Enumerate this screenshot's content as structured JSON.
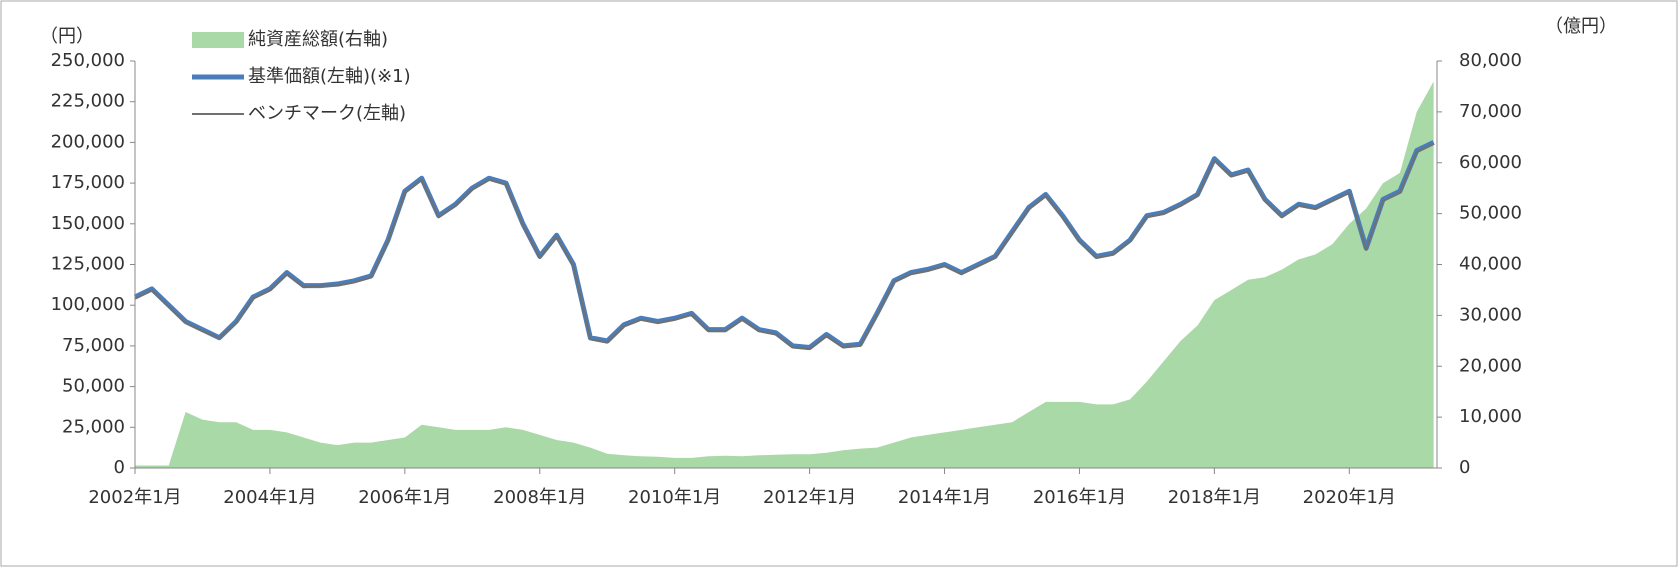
{
  "chart_data": {
    "type": "line",
    "y_unit": "（円）",
    "y2_unit": "（億円）",
    "categories": [
      "2002年1月",
      null,
      null,
      null,
      null,
      null,
      null,
      null,
      "2004年1月",
      null,
      null,
      null,
      null,
      null,
      null,
      null,
      "2006年1月",
      null,
      null,
      null,
      null,
      null,
      null,
      null,
      "2008年1月",
      null,
      null,
      null,
      null,
      null,
      null,
      null,
      "2010年1月",
      null,
      null,
      null,
      null,
      null,
      null,
      null,
      "2012年1月",
      null,
      null,
      null,
      null,
      null,
      null,
      null,
      "2014年1月",
      null,
      null,
      null,
      null,
      null,
      null,
      null,
      "2016年1月",
      null,
      null,
      null,
      null,
      null,
      null,
      null,
      "2018年1月",
      null,
      null,
      null,
      null,
      null,
      null,
      null,
      "2020年1月",
      null,
      null,
      null,
      null,
      null
    ],
    "series": [
      {
        "name": "純資産総額(右軸)",
        "type": "area",
        "axis": "y2",
        "color": "#a9d9a6",
        "values": [
          500,
          500,
          500,
          11000,
          9500,
          9000,
          9000,
          7500,
          7500,
          7000,
          6000,
          5000,
          4500,
          5000,
          5000,
          5500,
          6000,
          8500,
          8000,
          7500,
          7500,
          7500,
          8000,
          7500,
          6500,
          5500,
          5000,
          4000,
          2800,
          2500,
          2300,
          2200,
          2000,
          2000,
          2300,
          2400,
          2300,
          2500,
          2600,
          2700,
          2700,
          3000,
          3500,
          3800,
          4000,
          5000,
          6000,
          6500,
          7000,
          7500,
          8000,
          8500,
          9000,
          11000,
          13000,
          13000,
          13000,
          12500,
          12500,
          13500,
          17000,
          21000,
          25000,
          28000,
          33000,
          35000,
          37000,
          37500,
          39000,
          41000,
          42000,
          44000,
          48000,
          51000,
          56000,
          58000,
          70000,
          76000
        ]
      },
      {
        "name": "基準価額(左軸)(※1)",
        "type": "line",
        "color": "#4a7ebb",
        "values": [
          105000,
          110000,
          100000,
          90000,
          85000,
          80000,
          90000,
          105000,
          110000,
          120000,
          112000,
          112000,
          113000,
          115000,
          118000,
          140000,
          170000,
          178000,
          155000,
          162000,
          172000,
          178000,
          175000,
          150000,
          130000,
          143000,
          125000,
          80000,
          78000,
          88000,
          92000,
          90000,
          92000,
          95000,
          85000,
          85000,
          92000,
          85000,
          83000,
          75000,
          74000,
          82000,
          75000,
          76000,
          95000,
          115000,
          120000,
          122000,
          125000,
          120000,
          125000,
          130000,
          145000,
          160000,
          168000,
          155000,
          140000,
          130000,
          132000,
          140000,
          155000,
          157000,
          162000,
          168000,
          190000,
          180000,
          183000,
          165000,
          155000,
          162000,
          160000,
          165000,
          170000,
          135000,
          165000,
          170000,
          195000,
          200000
        ]
      },
      {
        "name": "ベンチマーク(左軸)",
        "type": "line",
        "color": "#707070",
        "values": [
          104000,
          109000,
          99000,
          89000,
          84000,
          80000,
          89000,
          104000,
          109000,
          119000,
          111000,
          112000,
          112000,
          114000,
          117000,
          139000,
          169000,
          177000,
          154000,
          161000,
          171000,
          177000,
          174000,
          149000,
          129000,
          142000,
          124000,
          79000,
          77000,
          87000,
          91000,
          89000,
          91000,
          94000,
          84000,
          84000,
          91000,
          84000,
          82000,
          74000,
          73000,
          81000,
          74000,
          75000,
          94000,
          114000,
          119000,
          121000,
          124000,
          119000,
          124000,
          129000,
          144000,
          159000,
          167000,
          154000,
          139000,
          129000,
          131000,
          139000,
          154000,
          156000,
          161000,
          167000,
          189000,
          179000,
          182000,
          164000,
          154000,
          161000,
          159000,
          164000,
          169000,
          134000,
          164000,
          169000,
          194000,
          199000
        ]
      }
    ],
    "ylim": [
      0,
      250000
    ],
    "yticks": [
      0,
      {
        "value": 25000,
        "label": "25,000"
      },
      {
        "value": 50000,
        "label": "50,000"
      },
      {
        "value": 75000,
        "label": "75,000"
      },
      {
        "value": 100000,
        "label": "100,000"
      },
      {
        "value": 125000,
        "label": "125,000"
      },
      {
        "value": 150000,
        "label": "150,000"
      },
      {
        "value": 175000,
        "label": "175,000"
      },
      {
        "value": 200000,
        "label": "200,000"
      },
      {
        "value": 225000,
        "label": "225,000"
      },
      {
        "value": 250000,
        "label": "250,000"
      }
    ],
    "y2lim": [
      0,
      80000
    ],
    "y2ticks": [
      0,
      {
        "value": 10000,
        "label": "10,000"
      },
      {
        "value": 20000,
        "label": "20,000"
      },
      {
        "value": 30000,
        "label": "30,000"
      },
      {
        "value": 40000,
        "label": "40,000"
      },
      {
        "value": 50000,
        "label": "50,000"
      },
      {
        "value": 60000,
        "label": "60,000"
      },
      {
        "value": 70000,
        "label": "70,000"
      },
      {
        "value": 80000,
        "label": "80,000"
      }
    ],
    "legend": "top-left"
  }
}
